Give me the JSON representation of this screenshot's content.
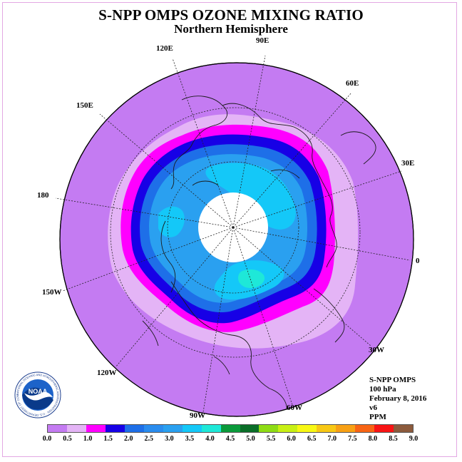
{
  "title": "S-NPP OMPS OZONE MIXING RATIO",
  "subtitle": "Northern Hemisphere",
  "map": {
    "projection": "polar stereographic",
    "hemisphere": "north",
    "longitude_labels": [
      "90E",
      "60E",
      "30E",
      "0",
      "30W",
      "60W",
      "90W",
      "120W",
      "150W",
      "180",
      "150E",
      "120E"
    ],
    "colors": {
      "outer_field": "#c47bf2",
      "light_ring": "#e4b4f6",
      "magenta_ring": "#ff00ff",
      "dark_blue_ring": "#1700e6",
      "blue_ring": "#1e6fe8",
      "mid_blue": "#2aa0f0",
      "light_blue": "#14c8f8",
      "no_data": "#ffffff"
    }
  },
  "info": {
    "instrument": "S-NPP OMPS",
    "level": "100 hPa",
    "date": "February 8, 2016",
    "version": "v6",
    "units": "PPM"
  },
  "logo": {
    "text": "NOAA",
    "ring_text": "NATIONAL OCEANIC AND ATMOSPHERIC ADMINISTRATION · U.S. DEPARTMENT OF COMMERCE"
  },
  "colorbar": {
    "colors": [
      "#c47bf2",
      "#e4b4f6",
      "#ff00ff",
      "#1700e6",
      "#1e6fe8",
      "#2a8cee",
      "#2aa0f0",
      "#14c8f8",
      "#1ee8d8",
      "#0a9a3a",
      "#0a6e28",
      "#8edc14",
      "#c8f014",
      "#f8f814",
      "#f8c814",
      "#f8a014",
      "#f86414",
      "#f81414",
      "#8c5a3c"
    ],
    "ticks": [
      "0.0",
      "0.5",
      "1.0",
      "1.5",
      "2.0",
      "2.5",
      "3.0",
      "3.5",
      "4.0",
      "4.5",
      "5.0",
      "5.5",
      "6.0",
      "6.5",
      "7.0",
      "7.5",
      "8.0",
      "8.5",
      "9.0"
    ]
  }
}
